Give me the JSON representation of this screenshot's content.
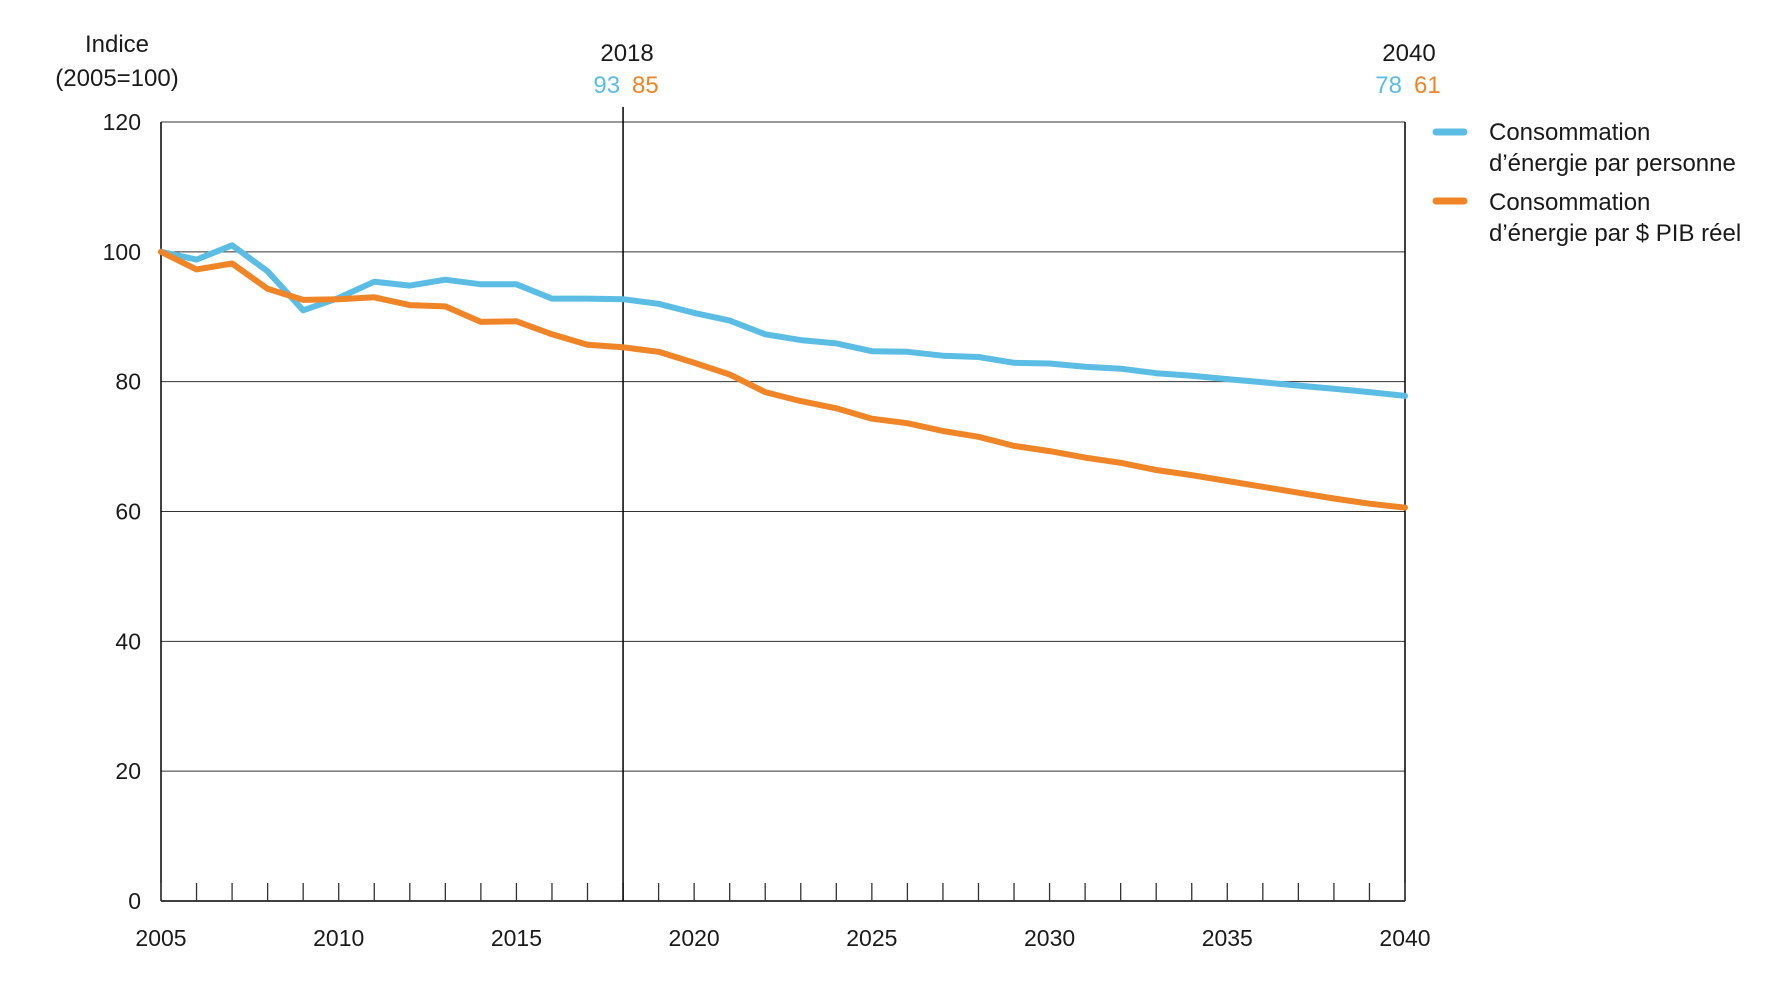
{
  "chart_data": {
    "type": "line",
    "title": "",
    "ylabel_line1": "Indice",
    "ylabel_line2": "(2005=100)",
    "xlabel": "",
    "xlim": [
      2005,
      2040
    ],
    "ylim": [
      0,
      120
    ],
    "y_ticks": [
      0,
      20,
      40,
      60,
      80,
      100,
      120
    ],
    "x_tick_labels": [
      2005,
      2010,
      2015,
      2020,
      2025,
      2030,
      2035,
      2040
    ],
    "grid": true,
    "legend_position": "top-right",
    "x": [
      2005,
      2006,
      2007,
      2008,
      2009,
      2010,
      2011,
      2012,
      2013,
      2014,
      2015,
      2016,
      2017,
      2018,
      2019,
      2020,
      2021,
      2022,
      2023,
      2024,
      2025,
      2026,
      2027,
      2028,
      2029,
      2030,
      2031,
      2032,
      2033,
      2034,
      2035,
      2036,
      2037,
      2038,
      2039,
      2040
    ],
    "series": [
      {
        "name": "Consommation d’énergie par personne",
        "legend_line1": "Consommation",
        "legend_line2": "d’énergie par personne",
        "color": "#5bbde4",
        "values": [
          100,
          98.8,
          101,
          97,
          91,
          92.9,
          95.4,
          94.8,
          95.7,
          95,
          95,
          92.8,
          92.8,
          92.7,
          92,
          90.6,
          89.4,
          87.3,
          86.4,
          85.9,
          84.7,
          84.6,
          84,
          83.8,
          82.9,
          82.8,
          82.3,
          82,
          81.3,
          80.9,
          80.4,
          79.9,
          79.4,
          78.9,
          78.4,
          77.8
        ]
      },
      {
        "name": "Consommation d’énergie par $ PIB réel",
        "legend_line1": "Consommation",
        "legend_line2": "d’énergie par $ PIB réel",
        "color": "#f08527",
        "values": [
          100,
          97.3,
          98.2,
          94.3,
          92.6,
          92.7,
          93,
          91.8,
          91.6,
          89.2,
          89.3,
          87.3,
          85.7,
          85.3,
          84.6,
          82.9,
          81.1,
          78.4,
          77,
          75.9,
          74.3,
          73.6,
          72.4,
          71.5,
          70.1,
          69.3,
          68.3,
          67.5,
          66.4,
          65.6,
          64.7,
          63.8,
          62.9,
          62,
          61.2,
          60.6
        ]
      }
    ],
    "annotations": [
      {
        "year": 2018,
        "label": "2018",
        "value_a": "93",
        "value_b": "85",
        "vertical_line": true
      },
      {
        "year": 2040,
        "label": "2040",
        "value_a": "78",
        "value_b": "61",
        "vertical_line": false
      }
    ]
  }
}
